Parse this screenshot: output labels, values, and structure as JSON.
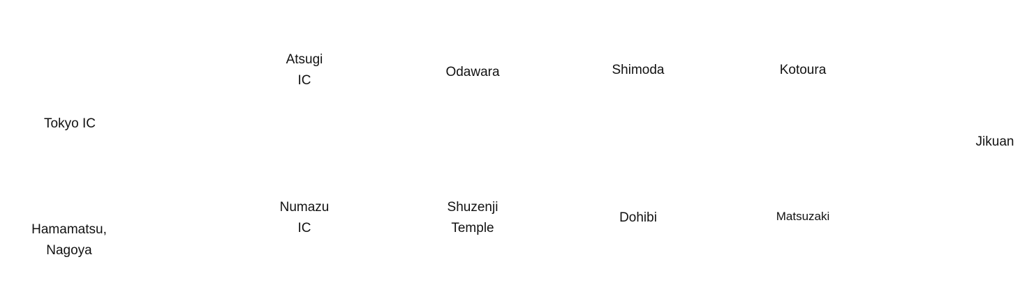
{
  "nodes": {
    "tokyo_ic": [
      "Tokyo IC"
    ],
    "hamamatsu_nagoya": [
      "Hamamatsu,",
      "Nagoya"
    ],
    "atsugi_ic": [
      "Atsugi",
      "IC"
    ],
    "numazu_ic": [
      "Numazu",
      "IC"
    ],
    "odawara": [
      "Odawara"
    ],
    "shuzenji_temple": [
      "Shuzenji",
      "Temple"
    ],
    "shimoda": [
      "Shimoda"
    ],
    "dohibi": [
      "Dohibi"
    ],
    "kotoura": [
      "Kotoura"
    ],
    "matsuzaki": [
      "Matsuzaki"
    ],
    "jikuan": [
      "Jikuan"
    ]
  }
}
